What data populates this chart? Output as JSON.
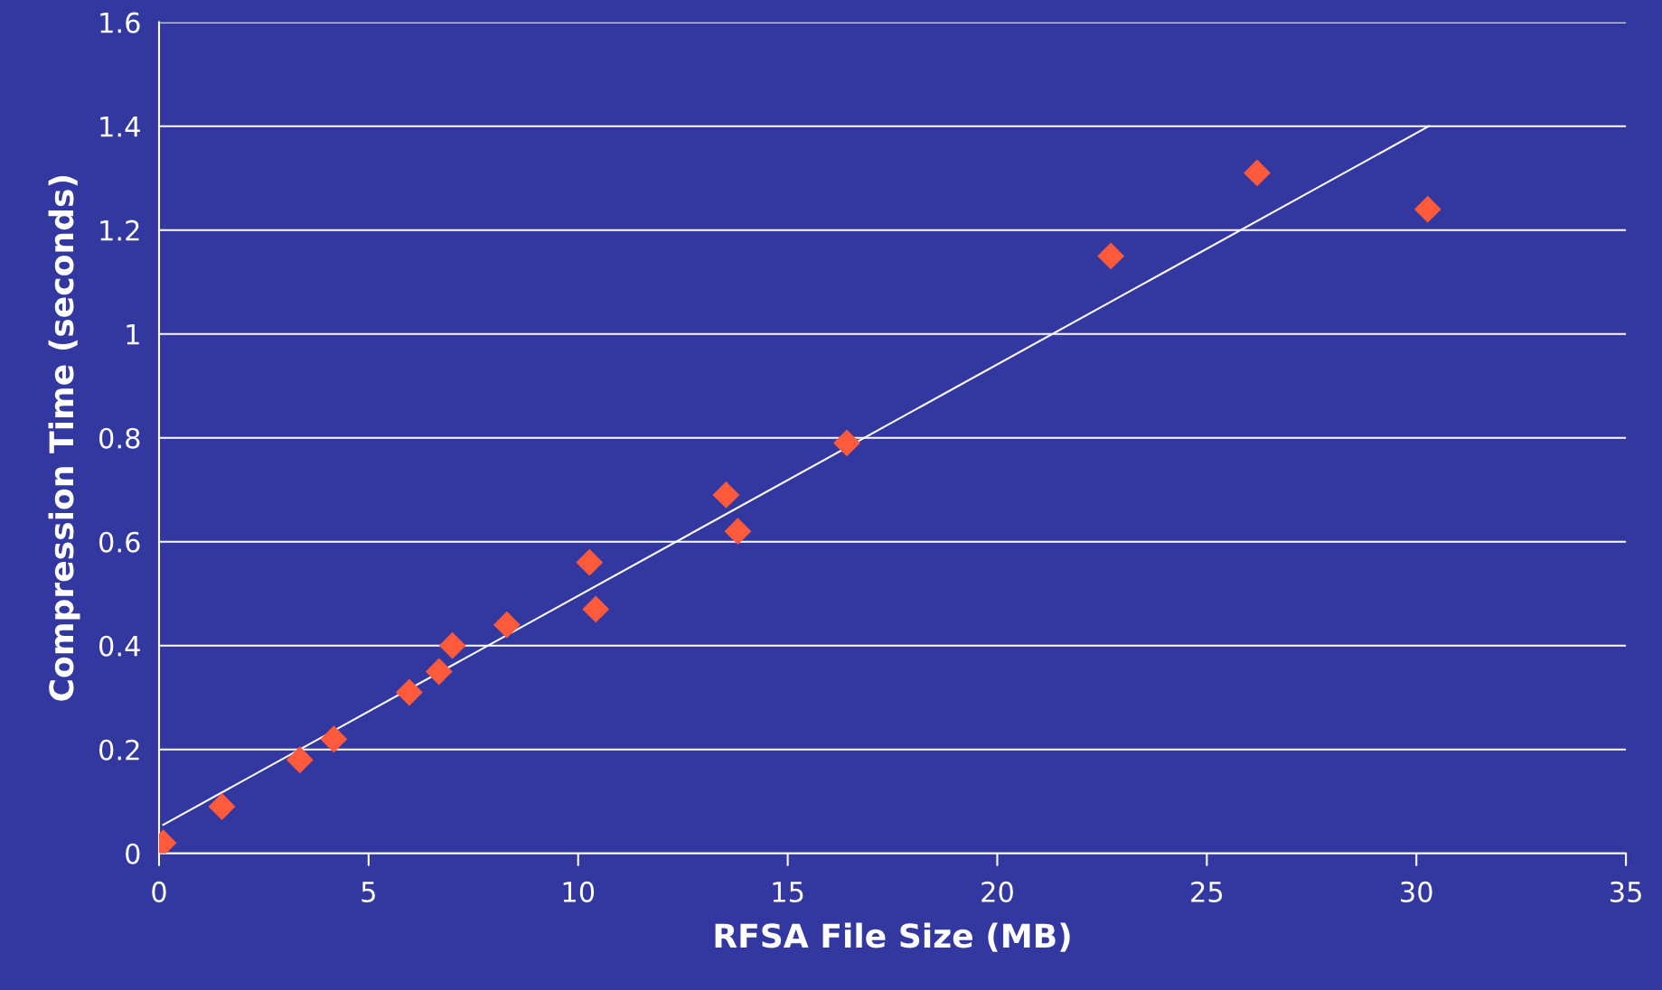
{
  "chart_data": {
    "type": "scatter",
    "xlabel": "RFSA File Size (MB)",
    "ylabel": "Compression Time (seconds)",
    "grid": "y",
    "xlim": [
      0,
      35
    ],
    "xticks": [
      0,
      5,
      10,
      15,
      20,
      25,
      30,
      35
    ],
    "ylim": [
      0,
      1.6
    ],
    "yticks": [
      0,
      0.2,
      0.4,
      0.6,
      0.8,
      1,
      1.2,
      1.4,
      1.6
    ],
    "series": [
      {
        "marker": "diamond",
        "color": "#ff5a3c",
        "x": [
          0.1,
          1.5,
          3.36,
          4.17,
          5.97,
          6.68,
          7.0,
          8.3,
          10.27,
          10.42,
          13.53,
          13.81,
          16.41,
          22.71,
          26.2,
          30.27
        ],
        "values": [
          0.02,
          0.09,
          0.18,
          0.22,
          0.31,
          0.35,
          0.4,
          0.44,
          0.56,
          0.47,
          0.69,
          0.62,
          0.79,
          1.15,
          1.31,
          1.24
        ]
      },
      {
        "type": "line",
        "marker": "none",
        "color": "#ffffff",
        "x": [
          0.1,
          30.3
        ],
        "values": [
          0.055,
          1.4
        ]
      }
    ]
  }
}
